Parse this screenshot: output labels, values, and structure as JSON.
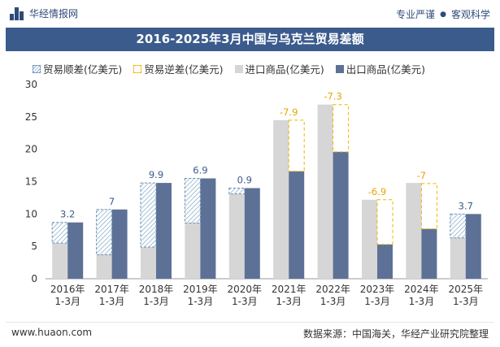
{
  "header": {
    "brand_name": "华经情报网",
    "slogan_left": "专业严谨",
    "slogan_right": "客观科学"
  },
  "chart_data": {
    "type": "bar",
    "title": "2016-2025年3月中国与乌克兰贸易差额",
    "categories": [
      "2016年\n1-3月",
      "2017年\n1-3月",
      "2018年\n1-3月",
      "2019年\n1-3月",
      "2020年\n1-3月",
      "2021年\n1-3月",
      "2022年\n1-3月",
      "2023年\n1-3月",
      "2024年\n1-3月",
      "2025年\n1-3月"
    ],
    "series": [
      {
        "name": "贸易顺差(亿美元)",
        "values": [
          3.2,
          7,
          9.9,
          6.9,
          0.9,
          null,
          null,
          null,
          null,
          3.7
        ]
      },
      {
        "name": "贸易逆差(亿美元)",
        "values": [
          null,
          null,
          null,
          null,
          null,
          -7.9,
          -7.3,
          -6.9,
          -7,
          null
        ]
      },
      {
        "name": "进口商品(亿美元)",
        "values": [
          5.5,
          3.7,
          4.9,
          8.6,
          13.1,
          24.5,
          26.9,
          12.2,
          14.8,
          6.3
        ]
      },
      {
        "name": "出口商品(亿美元)",
        "values": [
          8.7,
          10.7,
          14.8,
          15.5,
          14.0,
          16.6,
          19.6,
          5.3,
          7.7,
          10.0
        ]
      }
    ],
    "data_labels": [
      "3.2",
      "7",
      "9.9",
      "6.9",
      "0.9",
      "-7.9",
      "-7.3",
      "-6.9",
      "-7",
      "3.7"
    ],
    "ylim": [
      0,
      30
    ],
    "yticks": [
      0,
      5,
      10,
      15,
      20,
      25,
      30
    ],
    "grid": false,
    "legend_position": "top",
    "colors": {
      "import": "#d6d6d6",
      "export": "#5d7196",
      "surplus_hatch": "#8fb0cc",
      "surplus_border": "#6a8fb8",
      "deficit_border": "#f0b400",
      "surplus_label": "#3a5b8c",
      "deficit_label": "#e6a500"
    }
  },
  "footer": {
    "website": "www.huaon.com",
    "source": "数据来源：中国海关，华经产业研究院整理"
  }
}
